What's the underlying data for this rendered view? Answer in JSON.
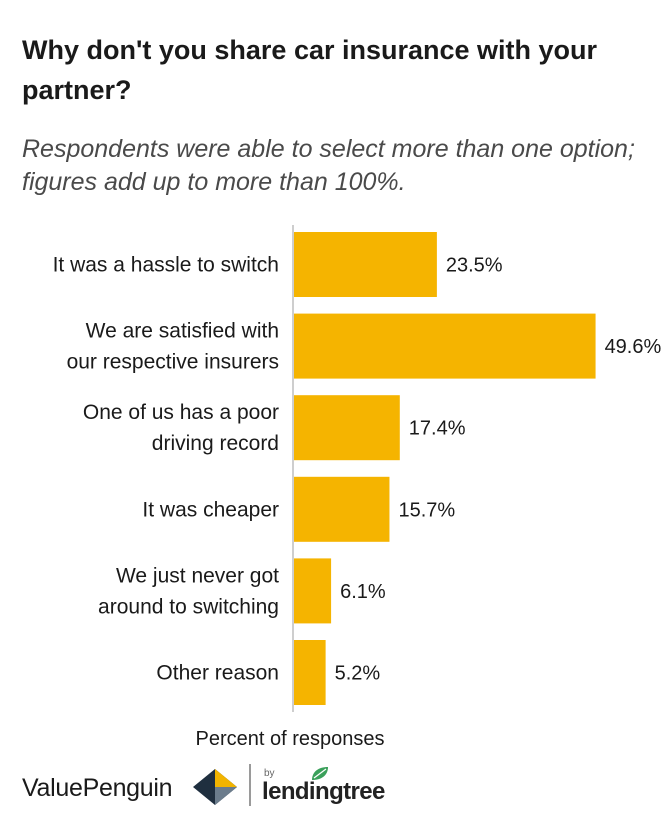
{
  "chart_data": {
    "type": "bar",
    "orientation": "horizontal",
    "title": "Why don't you share car insurance with your partner?",
    "subtitle": "Respondents were able to select more than one option; figures add up to more than 100%.",
    "xlabel": "Percent of responses",
    "ylabel": "",
    "categories": [
      [
        "It was a hassle to switch"
      ],
      [
        "We are satisfied with",
        "our respective insurers"
      ],
      [
        "One of us has a poor",
        "driving record"
      ],
      [
        "It was cheaper"
      ],
      [
        "We just never got",
        "around to switching"
      ],
      [
        "Other reason"
      ]
    ],
    "values": [
      23.5,
      49.6,
      17.4,
      15.7,
      6.1,
      5.2
    ],
    "value_labels": [
      "23.5%",
      "49.6%",
      "17.4%",
      "15.7%",
      "6.1%",
      "5.2%"
    ],
    "xlim": [
      0,
      50
    ],
    "bar_color": "#f5b400",
    "axis_color": "#bdbdbd",
    "grid": false,
    "legend": "none"
  },
  "footer": {
    "brand": "ValuePenguin",
    "by": "by",
    "partner": "lendingtree"
  },
  "icons": {
    "brand_logo": "valuepenguin-diamond-icon",
    "partner_logo": "lendingtree-leaf-icon"
  }
}
